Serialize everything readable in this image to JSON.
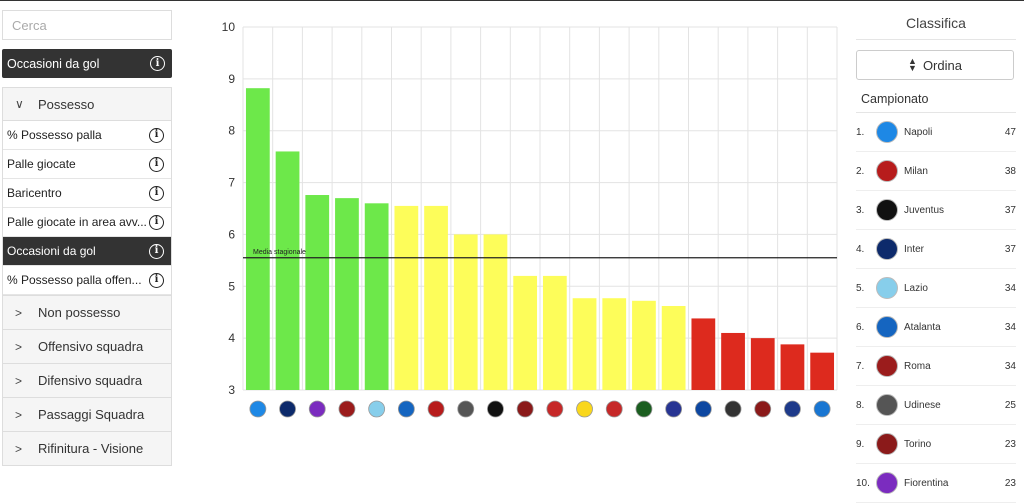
{
  "sidebar": {
    "search_placeholder": "Cerca",
    "selected_metric": "Occasioni da gol",
    "open_group": {
      "label": "Possesso",
      "items": [
        {
          "label": "% Possesso palla",
          "active": false
        },
        {
          "label": "Palle giocate",
          "active": false
        },
        {
          "label": "Baricentro",
          "active": false
        },
        {
          "label": "Palle giocate in area avv...",
          "active": false
        },
        {
          "label": "Occasioni da gol",
          "active": true
        },
        {
          "label": "% Possesso palla offen...",
          "active": false
        }
      ]
    },
    "categories": [
      "Non possesso",
      "Offensivo squadra",
      "Difensivo squadra",
      "Passaggi Squadra",
      "Rifinitura - Visione"
    ]
  },
  "chart_data": {
    "type": "bar",
    "ylim": [
      3,
      10
    ],
    "yticks": [
      3,
      4,
      5,
      6,
      7,
      8,
      9,
      10
    ],
    "grid": true,
    "values": [
      8.82,
      7.6,
      6.76,
      6.7,
      6.6,
      6.55,
      6.55,
      6.0,
      6.0,
      5.2,
      5.2,
      4.77,
      4.77,
      4.72,
      4.62,
      4.38,
      4.1,
      4.0,
      3.88,
      3.72
    ],
    "bar_colors": [
      "#6de84a",
      "#6de84a",
      "#6de84a",
      "#6de84a",
      "#6de84a",
      "#fdfd5a",
      "#fdfd5a",
      "#fdfd5a",
      "#fdfd5a",
      "#fdfd5a",
      "#fdfd5a",
      "#fdfd5a",
      "#fdfd5a",
      "#fdfd5a",
      "#fdfd5a",
      "#dd2a1e",
      "#dd2a1e",
      "#dd2a1e",
      "#dd2a1e",
      "#dd2a1e"
    ],
    "logo_colors": [
      "#1e88e5",
      "#0d2a6b",
      "#7b2cbf",
      "#9b1c1c",
      "#87ceeb",
      "#1565c0",
      "#b71c1c",
      "#555555",
      "#111111",
      "#8b1a1a",
      "#c62828",
      "#f9d71c",
      "#c62828",
      "#1b5e20",
      "#283593",
      "#0d47a1",
      "#333333",
      "#8b1a1a",
      "#1e3a8a",
      "#1976d2"
    ],
    "average": {
      "value": 5.55,
      "label": "Media stagionale"
    }
  },
  "ranking": {
    "title": "Classifica",
    "sort_label": "Ordina",
    "subtitle": "Campionato",
    "rows": [
      {
        "pos": "1.",
        "team": "Napoli",
        "pts": "47",
        "color": "#1e88e5"
      },
      {
        "pos": "2.",
        "team": "Milan",
        "pts": "38",
        "color": "#b71c1c"
      },
      {
        "pos": "3.",
        "team": "Juventus",
        "pts": "37",
        "color": "#111111"
      },
      {
        "pos": "4.",
        "team": "Inter",
        "pts": "37",
        "color": "#0d2a6b"
      },
      {
        "pos": "5.",
        "team": "Lazio",
        "pts": "34",
        "color": "#87ceeb"
      },
      {
        "pos": "6.",
        "team": "Atalanta",
        "pts": "34",
        "color": "#1565c0"
      },
      {
        "pos": "7.",
        "team": "Roma",
        "pts": "34",
        "color": "#9b1c1c"
      },
      {
        "pos": "8.",
        "team": "Udinese",
        "pts": "25",
        "color": "#555555"
      },
      {
        "pos": "9.",
        "team": "Torino",
        "pts": "23",
        "color": "#8b1a1a"
      },
      {
        "pos": "10.",
        "team": "Fiorentina",
        "pts": "23",
        "color": "#7b2cbf"
      }
    ]
  }
}
